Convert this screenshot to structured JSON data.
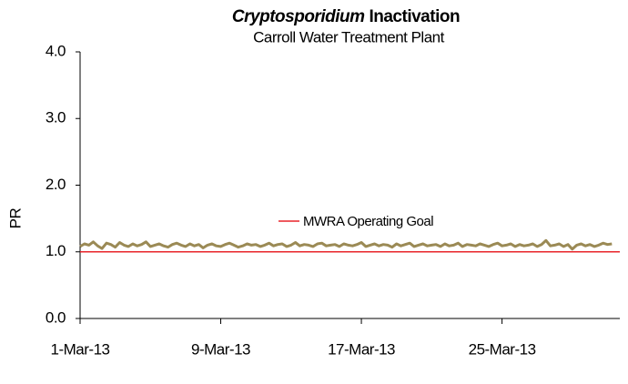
{
  "chart_data": {
    "type": "line",
    "title_parts": [
      "Cryptosporidium",
      "Inactivation"
    ],
    "subtitle": "Carroll Water Treatment Plant",
    "y_label": "PR",
    "ylim": [
      0,
      4
    ],
    "yticks": [
      {
        "value": 0,
        "label": "0.0"
      },
      {
        "value": 1,
        "label": "1.0"
      },
      {
        "value": 2,
        "label": "2.0"
      },
      {
        "value": 3,
        "label": "3.0"
      },
      {
        "value": 4,
        "label": "4.0"
      }
    ],
    "xlim": [
      1,
      31.7
    ],
    "xticks": [
      {
        "value": 1,
        "label": "1-Mar-13"
      },
      {
        "value": 9,
        "label": "9-Mar-13"
      },
      {
        "value": 17,
        "label": "17-Mar-13"
      },
      {
        "value": 25,
        "label": "25-Mar-13"
      }
    ],
    "x": [
      1,
      1.25,
      1.5,
      1.75,
      2,
      2.25,
      2.5,
      2.75,
      3,
      3.25,
      3.5,
      3.75,
      4,
      4.25,
      4.5,
      4.75,
      5,
      5.25,
      5.5,
      5.75,
      6,
      6.25,
      6.5,
      6.75,
      7,
      7.25,
      7.5,
      7.75,
      8,
      8.25,
      8.5,
      8.75,
      9,
      9.25,
      9.5,
      9.75,
      10,
      10.25,
      10.5,
      10.75,
      11,
      11.25,
      11.5,
      11.75,
      12,
      12.25,
      12.5,
      12.75,
      13,
      13.25,
      13.5,
      13.75,
      14,
      14.25,
      14.5,
      14.75,
      15,
      15.25,
      15.5,
      15.75,
      16,
      16.25,
      16.5,
      16.75,
      17,
      17.25,
      17.5,
      17.75,
      18,
      18.25,
      18.5,
      18.75,
      19,
      19.25,
      19.5,
      19.75,
      20,
      20.25,
      20.5,
      20.75,
      21,
      21.25,
      21.5,
      21.75,
      22,
      22.25,
      22.5,
      22.75,
      23,
      23.25,
      23.5,
      23.75,
      24,
      24.25,
      24.5,
      24.75,
      25,
      25.25,
      25.5,
      25.75,
      26,
      26.25,
      26.5,
      26.75,
      27,
      27.25,
      27.5,
      27.75,
      28,
      28.25,
      28.5,
      28.75,
      29,
      29.25,
      29.5,
      29.75,
      30,
      30.25,
      30.5,
      30.75,
      31,
      31.25
    ],
    "series": [
      {
        "color": "#9b8a55",
        "values": [
          1.08,
          1.12,
          1.1,
          1.15,
          1.09,
          1.05,
          1.13,
          1.11,
          1.07,
          1.14,
          1.1,
          1.08,
          1.12,
          1.09,
          1.11,
          1.15,
          1.08,
          1.1,
          1.12,
          1.09,
          1.07,
          1.11,
          1.13,
          1.1,
          1.08,
          1.12,
          1.09,
          1.11,
          1.06,
          1.1,
          1.12,
          1.09,
          1.08,
          1.11,
          1.13,
          1.1,
          1.07,
          1.09,
          1.12,
          1.1,
          1.11,
          1.08,
          1.1,
          1.13,
          1.09,
          1.11,
          1.12,
          1.08,
          1.1,
          1.14,
          1.09,
          1.11,
          1.1,
          1.08,
          1.12,
          1.13,
          1.09,
          1.1,
          1.11,
          1.08,
          1.12,
          1.1,
          1.09,
          1.11,
          1.14,
          1.08,
          1.1,
          1.12,
          1.09,
          1.11,
          1.1,
          1.07,
          1.12,
          1.09,
          1.11,
          1.13,
          1.08,
          1.1,
          1.12,
          1.09,
          1.1,
          1.11,
          1.08,
          1.12,
          1.09,
          1.1,
          1.13,
          1.08,
          1.11,
          1.1,
          1.09,
          1.12,
          1.1,
          1.08,
          1.11,
          1.13,
          1.09,
          1.1,
          1.12,
          1.08,
          1.11,
          1.09,
          1.1,
          1.12,
          1.08,
          1.11,
          1.17,
          1.09,
          1.1,
          1.12,
          1.08,
          1.11,
          1.04,
          1.1,
          1.12,
          1.09,
          1.11,
          1.08,
          1.1,
          1.13,
          1.11,
          1.12
        ]
      }
    ],
    "reference_line": {
      "name": "MWRA Operating Goal",
      "value": 1,
      "color": "#e8242a"
    }
  }
}
